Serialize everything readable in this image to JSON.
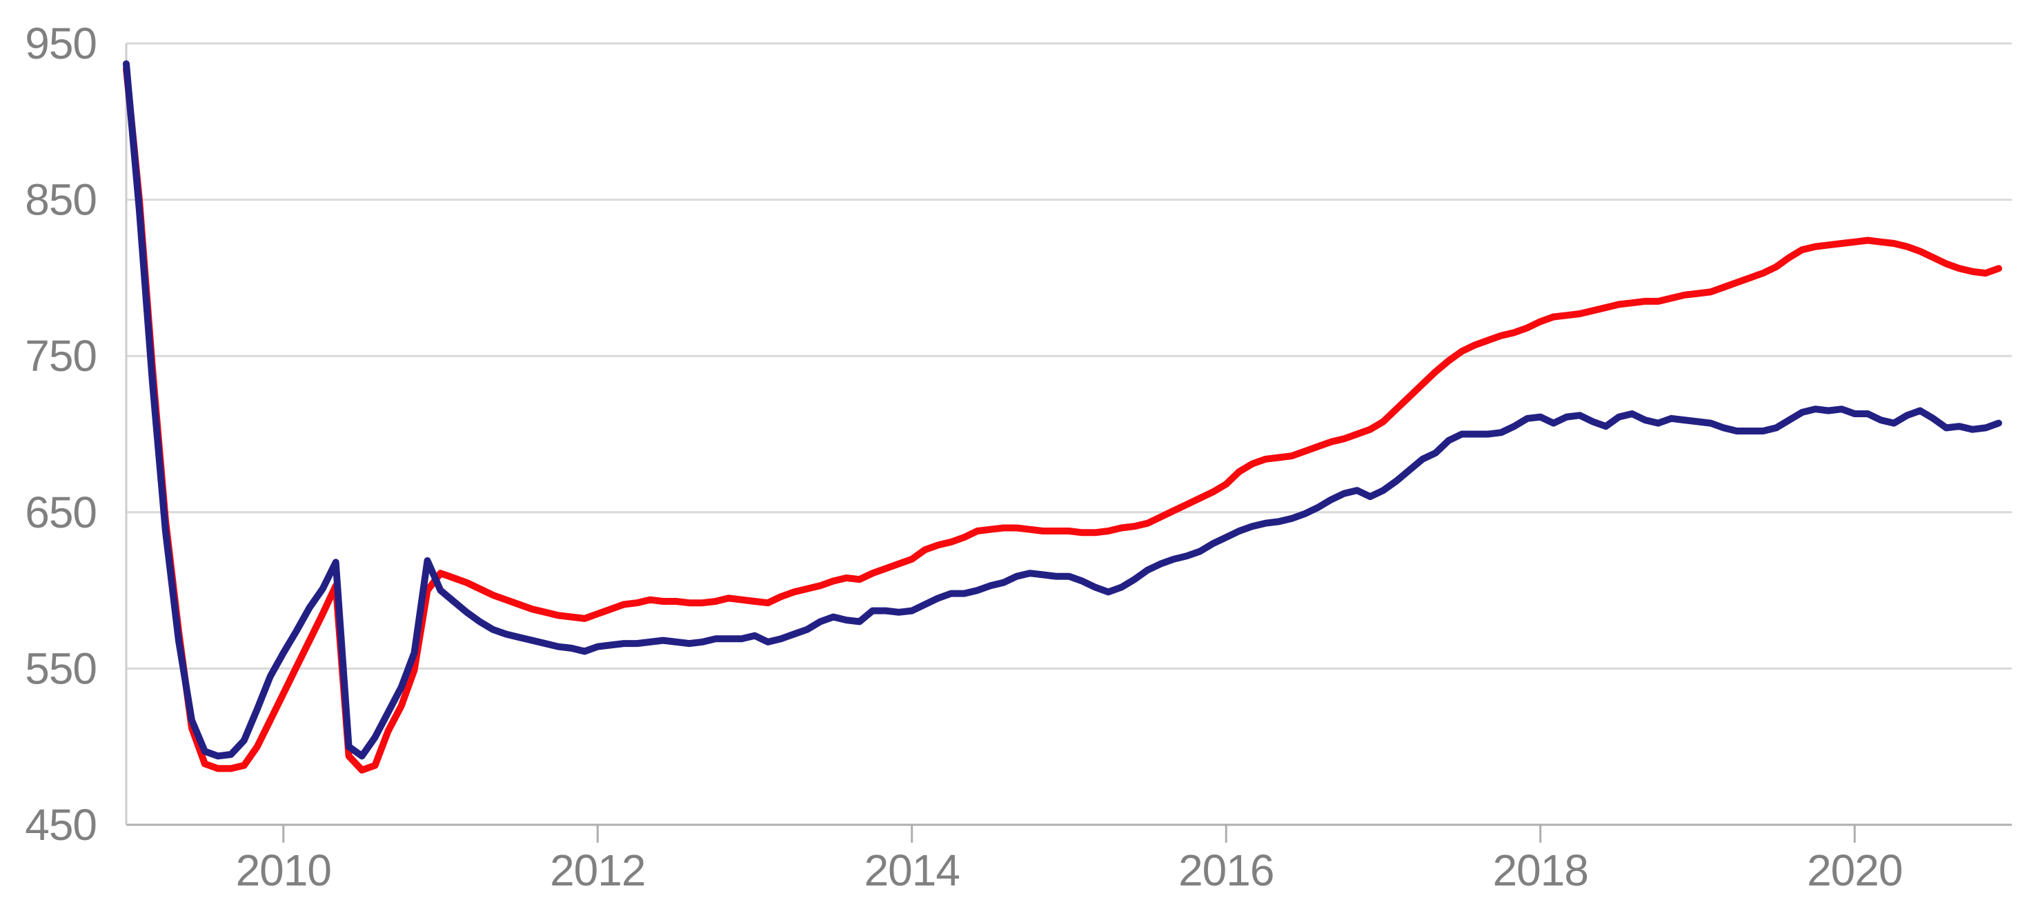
{
  "chart_data": {
    "type": "line",
    "title": "",
    "xlabel": "",
    "ylabel": "",
    "x_start_year": 2009,
    "x_step": "monthly",
    "xlim": [
      2009.0,
      2021.0
    ],
    "ylim": [
      450,
      950
    ],
    "xticks": [
      2010,
      2012,
      2014,
      2016,
      2018,
      2020
    ],
    "yticks": [
      450,
      550,
      650,
      750,
      850,
      950
    ],
    "grid": true,
    "legend": "none",
    "series": [
      {
        "name": "red-series",
        "color": "#f60a0d",
        "stroke_width": 10,
        "values": [
          934,
          850,
          742,
          645,
          574,
          512,
          489,
          486,
          486,
          488,
          500,
          517,
          534,
          551,
          568,
          585,
          603,
          494,
          485,
          488,
          510,
          526,
          549,
          600,
          611,
          608,
          605,
          601,
          597,
          594,
          591,
          588,
          586,
          584,
          583,
          582,
          585,
          588,
          591,
          592,
          594,
          593,
          593,
          592,
          592,
          593,
          595,
          594,
          593,
          592,
          596,
          599,
          601,
          603,
          606,
          608,
          607,
          611,
          614,
          617,
          620,
          626,
          629,
          631,
          634,
          638,
          639,
          640,
          640,
          639,
          638,
          638,
          638,
          637,
          637,
          638,
          640,
          641,
          643,
          647,
          651,
          655,
          659,
          663,
          668,
          676,
          681,
          684,
          685,
          686,
          689,
          692,
          695,
          697,
          700,
          703,
          708,
          716,
          724,
          732,
          740,
          747,
          753,
          757,
          760,
          763,
          765,
          768,
          772,
          775,
          776,
          777,
          779,
          781,
          783,
          784,
          785,
          785,
          787,
          789,
          790,
          791,
          794,
          797,
          800,
          803,
          807,
          813,
          818,
          820,
          821,
          822,
          823,
          824,
          823,
          822,
          820,
          817,
          813,
          809,
          806,
          804,
          803,
          806
        ]
      },
      {
        "name": "navy-series",
        "color": "#232084",
        "stroke_width": 10,
        "values": [
          937,
          843,
          733,
          638,
          568,
          517,
          497,
          494,
          495,
          504,
          524,
          545,
          560,
          574,
          589,
          601,
          618,
          500,
          494,
          506,
          522,
          538,
          560,
          619,
          600,
          593,
          586,
          580,
          575,
          572,
          570,
          568,
          566,
          564,
          563,
          561,
          564,
          565,
          566,
          566,
          567,
          568,
          567,
          566,
          567,
          569,
          569,
          569,
          571,
          567,
          569,
          572,
          575,
          580,
          583,
          581,
          580,
          587,
          587,
          586,
          587,
          591,
          595,
          598,
          598,
          600,
          603,
          605,
          609,
          611,
          610,
          609,
          609,
          606,
          602,
          599,
          602,
          607,
          613,
          617,
          620,
          622,
          625,
          630,
          634,
          638,
          641,
          643,
          644,
          646,
          649,
          653,
          658,
          662,
          664,
          660,
          664,
          670,
          677,
          684,
          688,
          696,
          700,
          700,
          700,
          701,
          705,
          710,
          711,
          707,
          711,
          712,
          708,
          705,
          711,
          713,
          709,
          707,
          710,
          709,
          708,
          707,
          704,
          702,
          702,
          702,
          704,
          709,
          714,
          716,
          715,
          716,
          713,
          713,
          709,
          707,
          712,
          715,
          710,
          704,
          705,
          703,
          704,
          707
        ]
      }
    ]
  },
  "styles": {
    "background_color": "#ffffff",
    "grid_color": "#d9d9d9",
    "axis_line_color": "#aeaeae",
    "y_axis_line_color": "#cdcdcd",
    "tick_label_color": "#808080",
    "tick_font_size": 64
  }
}
